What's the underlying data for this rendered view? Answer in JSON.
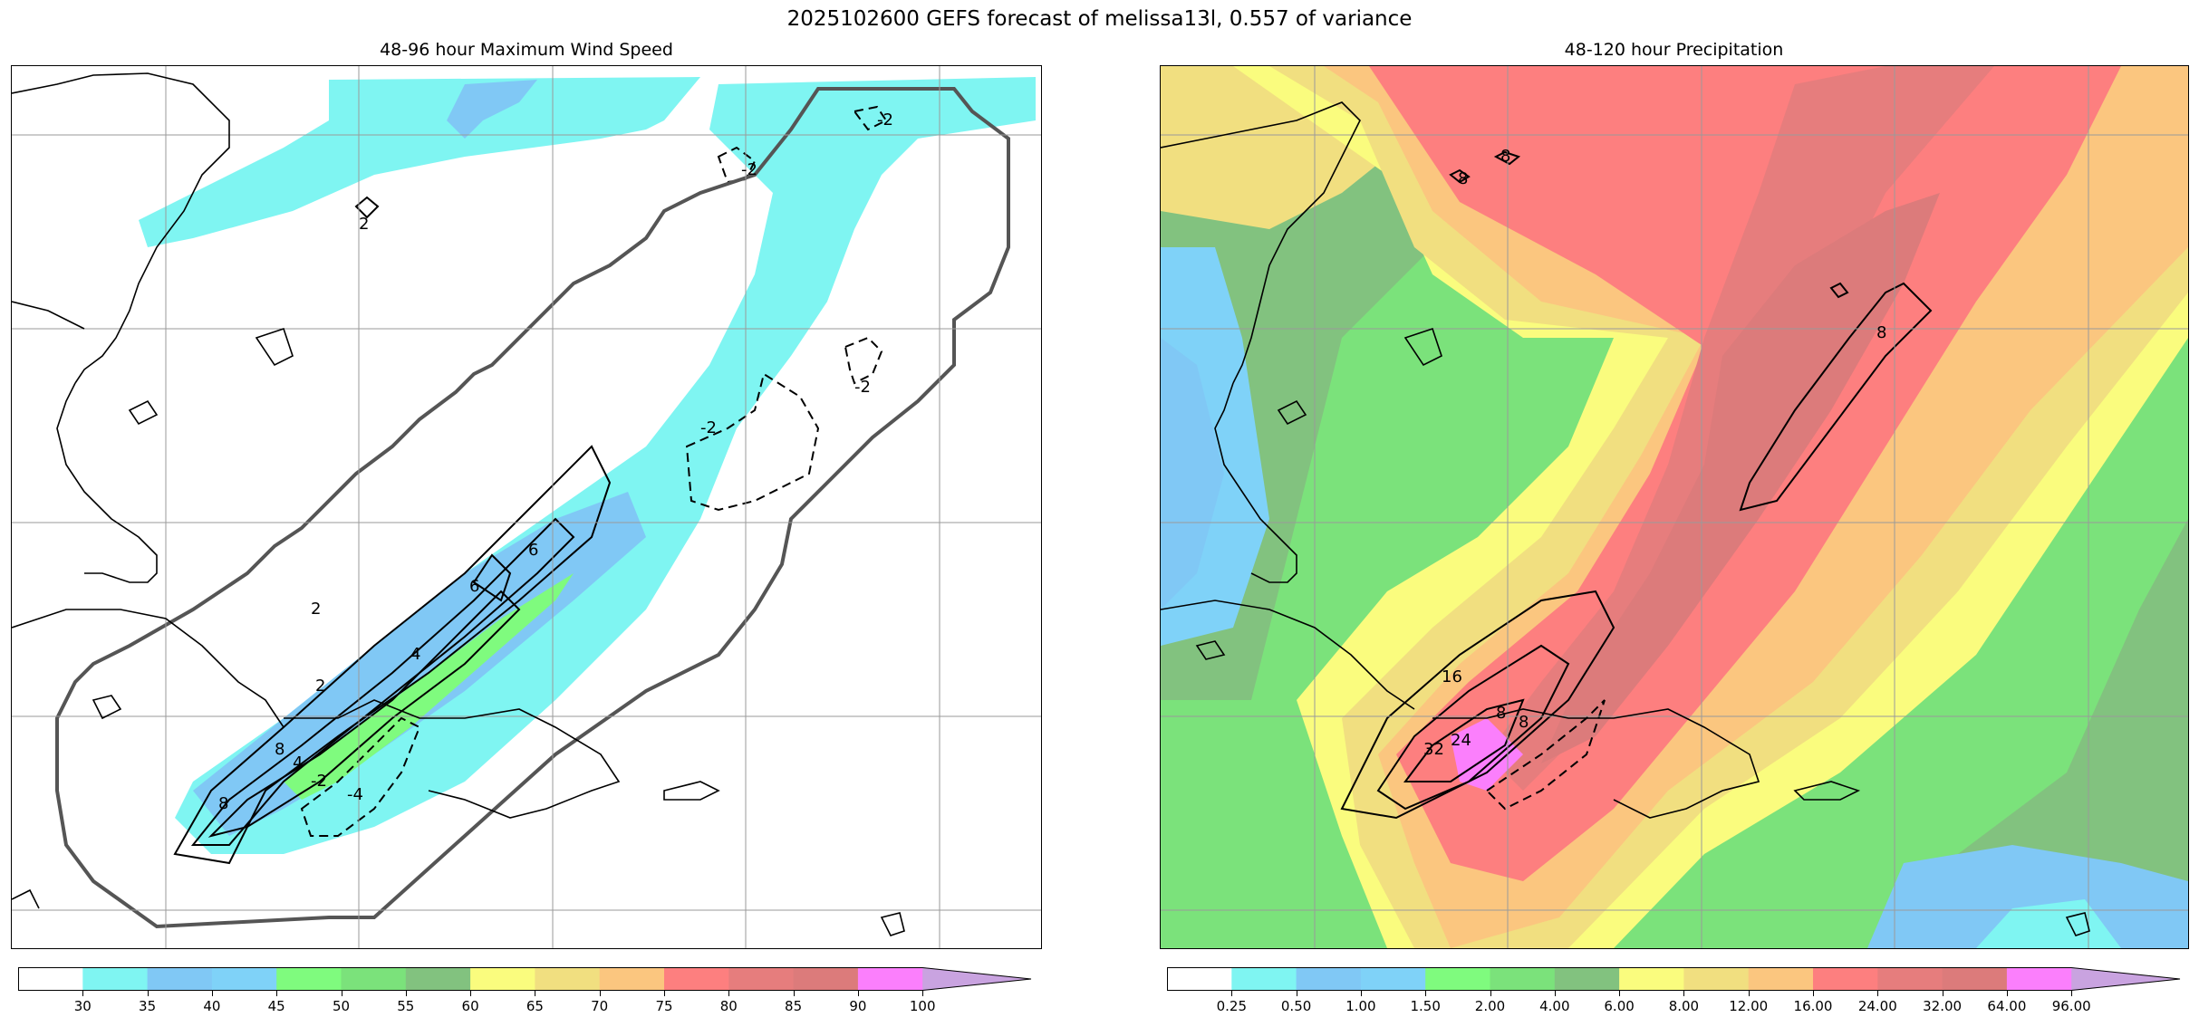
{
  "suptitle": "2025102600 GEFS forecast of melissa13l, 0.557 of variance",
  "left_panel": {
    "title": "48-96 hour Maximum Wind Speed",
    "contour_labels": [
      "2",
      "-2",
      "-2",
      "-2",
      "-2",
      "2",
      "4",
      "6",
      "6",
      "8",
      "8",
      "-2",
      "-4",
      "4",
      "2"
    ],
    "colorbar": {
      "ticks": [
        "30",
        "35",
        "40",
        "45",
        "50",
        "55",
        "60",
        "65",
        "70",
        "75",
        "80",
        "85",
        "90",
        "100"
      ],
      "colors": [
        "#ffffff",
        "#7ff5f2",
        "#80c8f5",
        "#7fd2f8",
        "#7ffb7e",
        "#7be27b",
        "#82c27f",
        "#fafc7e",
        "#f1df80",
        "#fbc67f",
        "#fd7f7f",
        "#e67d7d",
        "#dc7b7b",
        "#fb7ffc",
        "#c9a3e0"
      ]
    }
  },
  "right_panel": {
    "title": "48-120 hour Precipitation",
    "contour_labels": [
      "8",
      "8",
      "8",
      "32",
      "24",
      "16",
      "8",
      "8"
    ],
    "colorbar": {
      "ticks": [
        "0.25",
        "0.50",
        "1.00",
        "1.50",
        "2.00",
        "4.00",
        "6.00",
        "8.00",
        "12.00",
        "16.00",
        "24.00",
        "32.00",
        "64.00",
        "96.00"
      ],
      "colors": [
        "#ffffff",
        "#7ff5f2",
        "#80c8f5",
        "#7fd2f8",
        "#7ffb7e",
        "#7be27b",
        "#82c27f",
        "#fafc7e",
        "#f1df80",
        "#fbc67f",
        "#fd7f7f",
        "#e67d7d",
        "#dc7b7b",
        "#fb7ffc",
        "#c9a3e0"
      ]
    }
  }
}
